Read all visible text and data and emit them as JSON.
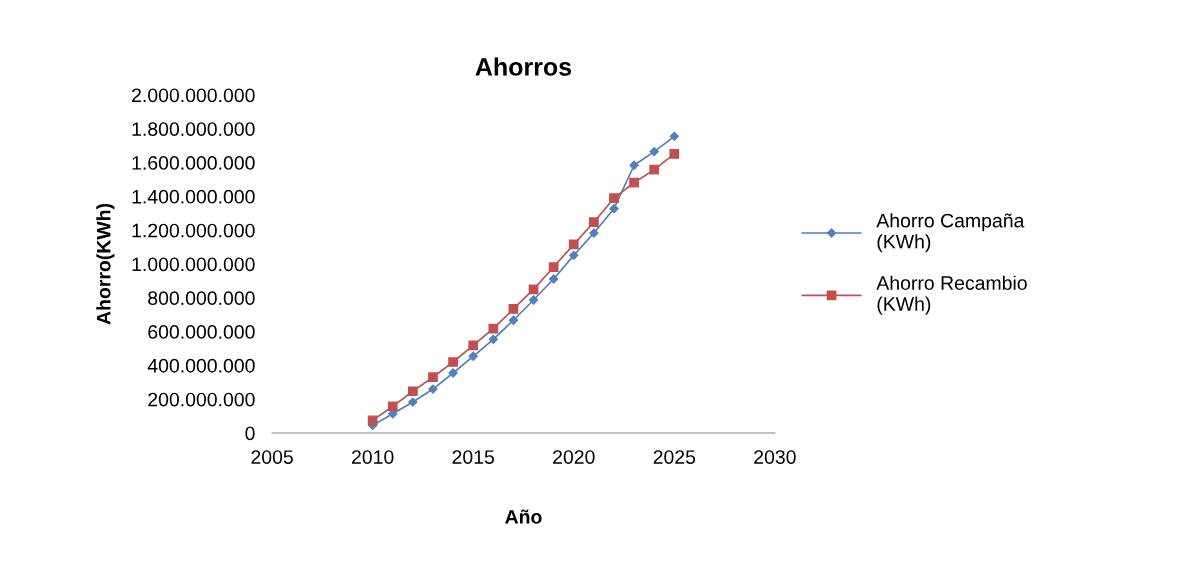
{
  "chart_data": {
    "type": "line",
    "title": "Ahorros",
    "xlabel": "Año",
    "ylabel": "Ahorro(KWh)",
    "x": [
      2010,
      2011,
      2012,
      2013,
      2014,
      2015,
      2016,
      2017,
      2018,
      2019,
      2020,
      2021,
      2022,
      2023,
      2024,
      2025
    ],
    "series": [
      {
        "name": "Ahorro Campaña (KWh)",
        "color": "#4f81bd",
        "marker": "diamond",
        "values": [
          45000000,
          114000000,
          183000000,
          260000000,
          355000000,
          454000000,
          554000000,
          667000000,
          787000000,
          911000000,
          1051000000,
          1183000000,
          1327000000,
          1584000000,
          1665000000,
          1755000000
        ]
      },
      {
        "name": "Ahorro Recambio (KWh)",
        "color": "#c0504d",
        "marker": "square",
        "values": [
          75000000,
          158000000,
          247000000,
          331000000,
          420000000,
          519000000,
          617000000,
          734000000,
          850000000,
          982000000,
          1116000000,
          1247000000,
          1389000000,
          1481000000,
          1558000000,
          1651000000
        ]
      }
    ],
    "xlim": [
      2005,
      2030
    ],
    "xticks": [
      2005,
      2010,
      2015,
      2020,
      2025,
      2030
    ],
    "ylim": [
      0,
      2000000000
    ],
    "yticks": [
      0,
      {
        "value": 200000000,
        "label": "200.000.000"
      },
      {
        "value": 400000000,
        "label": "400.000.000"
      },
      {
        "value": 600000000,
        "label": "600.000.000"
      },
      {
        "value": 800000000,
        "label": "800.000.000"
      },
      {
        "value": 1000000000,
        "label": "1.000.000.000"
      },
      {
        "value": 1200000000,
        "label": "1.200.000.000"
      },
      {
        "value": 1400000000,
        "label": "1.400.000.000"
      },
      {
        "value": 1600000000,
        "label": "1.600.000.000"
      },
      {
        "value": 1800000000,
        "label": "1.800.000.000"
      },
      {
        "value": 2000000000,
        "label": "2.000.000.000"
      }
    ],
    "grid": false,
    "legend": "right",
    "line_style": "solid"
  }
}
